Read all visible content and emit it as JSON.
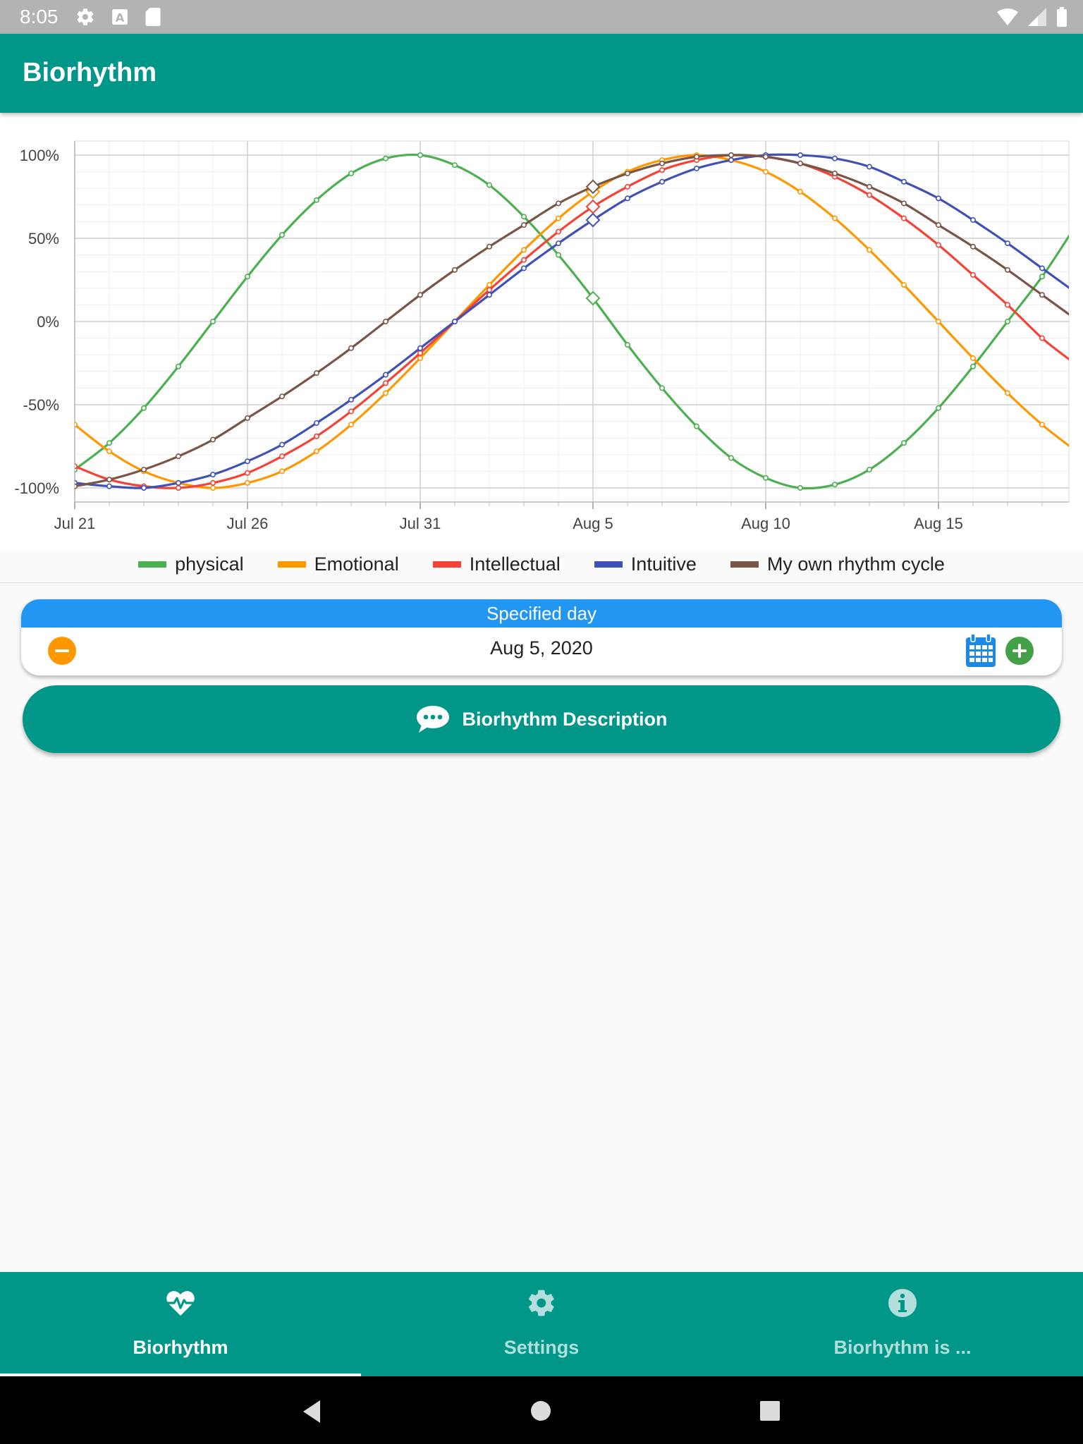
{
  "status_bar": {
    "time": "8:05",
    "left_icons": [
      "gear-icon",
      "font-a-icon",
      "sd-card-icon"
    ],
    "right_icons": [
      "wifi-icon",
      "signal-icon",
      "battery-icon"
    ]
  },
  "app_bar": {
    "title": "Biorhythm"
  },
  "chart_data": {
    "type": "line",
    "x_tick_labels": [
      "Jul 21",
      "Jul 26",
      "Jul 31",
      "Aug 5",
      "Aug 10",
      "Aug 15"
    ],
    "y_tick_labels": [
      "100%",
      "50%",
      "0%",
      "-50%",
      "-100%"
    ],
    "x_range_days": [
      0,
      28.8
    ],
    "ylim": [
      -100,
      100
    ],
    "series_style": "smooth lines with small point markers; selected day shown with a diamond marker",
    "selected_day_index": 15,
    "grid": true,
    "legend_position": "bottom",
    "series": [
      {
        "name": "physical",
        "color": "#4caf50",
        "values": [
          -89,
          -73,
          -52,
          -27,
          0,
          27,
          52,
          73,
          89,
          98,
          100,
          94,
          82,
          63,
          40,
          14,
          -14,
          -40,
          -63,
          -82,
          -94,
          -100,
          -98,
          -89,
          -73,
          -52,
          -27,
          0,
          27,
          52
        ]
      },
      {
        "name": "Emotional",
        "color": "#ff9800",
        "values": [
          -62,
          -78,
          -90,
          -97,
          -100,
          -97,
          -90,
          -78,
          -62,
          -43,
          -22,
          0,
          22,
          43,
          62,
          78,
          90,
          97,
          100,
          97,
          90,
          78,
          62,
          43,
          22,
          0,
          -22,
          -43,
          -62,
          -75
        ]
      },
      {
        "name": "Intellectual",
        "color": "#f44336",
        "values": [
          -87,
          -95,
          -99,
          -100,
          -97,
          -91,
          -81,
          -69,
          -54,
          -37,
          -19,
          0,
          19,
          37,
          54,
          69,
          81,
          91,
          97,
          100,
          99,
          95,
          87,
          76,
          62,
          46,
          28,
          10,
          -10,
          -23
        ]
      },
      {
        "name": "Intuitive",
        "color": "#3f51b5",
        "values": [
          -97,
          -99,
          -100,
          -97,
          -92,
          -84,
          -74,
          -61,
          -47,
          -32,
          -16,
          0,
          16,
          32,
          47,
          61,
          74,
          84,
          92,
          97,
          100,
          100,
          98,
          93,
          84,
          74,
          61,
          47,
          32,
          20
        ]
      },
      {
        "name": "My own rhythm cycle",
        "color": "#795548",
        "values": [
          -99,
          -95,
          -89,
          -81,
          -71,
          -58,
          -45,
          -31,
          -16,
          0,
          16,
          31,
          45,
          58,
          71,
          81,
          89,
          95,
          99,
          100,
          99,
          95,
          89,
          81,
          71,
          58,
          45,
          31,
          16,
          4
        ]
      }
    ]
  },
  "specified_day": {
    "header": "Specified day",
    "value": "Aug 5, 2020"
  },
  "description_button": {
    "label": "Biorhythm Description",
    "icon": "speech-bubble-icon"
  },
  "bottom_nav": {
    "items": [
      {
        "label": "Biorhythm",
        "icon": "heartbeat-icon",
        "active": true
      },
      {
        "label": "Settings",
        "icon": "gear-icon",
        "active": false
      },
      {
        "label": "Biorhythm is ...",
        "icon": "info-icon",
        "active": false
      }
    ]
  },
  "system_nav": [
    "back-icon",
    "home-icon",
    "recents-icon"
  ]
}
